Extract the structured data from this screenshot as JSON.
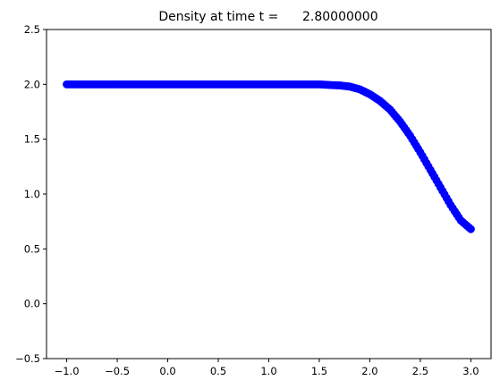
{
  "chart_data": {
    "type": "scatter",
    "title": "Density at time t =      2.80000000",
    "xlabel": "",
    "ylabel": "",
    "xlim": [
      -1.2,
      3.2
    ],
    "ylim": [
      -0.5,
      2.5
    ],
    "x_ticks": [
      -1.0,
      -0.5,
      0.0,
      0.5,
      1.0,
      1.5,
      2.0,
      2.5,
      3.0
    ],
    "x_tick_labels": [
      "−1.0",
      "−0.5",
      "0.0",
      "0.5",
      "1.0",
      "1.5",
      "2.0",
      "2.5",
      "3.0"
    ],
    "y_ticks": [
      -0.5,
      0.0,
      0.5,
      1.0,
      1.5,
      2.0,
      2.5
    ],
    "y_tick_labels": [
      "−0.5",
      "0.0",
      "0.5",
      "1.0",
      "1.5",
      "2.0",
      "2.5"
    ],
    "grid": false,
    "marker_color": "#0000ff",
    "x": [
      -1.0,
      -0.9,
      -0.8,
      -0.7,
      -0.6,
      -0.5,
      -0.4,
      -0.3,
      -0.2,
      -0.1,
      0.0,
      0.1,
      0.2,
      0.3,
      0.4,
      0.5,
      0.6,
      0.7,
      0.8,
      0.9,
      1.0,
      1.1,
      1.2,
      1.3,
      1.4,
      1.5,
      1.6,
      1.7,
      1.8,
      1.9,
      2.0,
      2.1,
      2.2,
      2.3,
      2.4,
      2.5,
      2.6,
      2.7,
      2.8,
      2.9,
      3.0
    ],
    "y": [
      2.0,
      2.0,
      2.0,
      2.0,
      2.0,
      2.0,
      2.0,
      2.0,
      2.0,
      2.0,
      2.0,
      2.0,
      2.0,
      2.0,
      2.0,
      2.0,
      2.0,
      2.0,
      2.0,
      2.0,
      2.0,
      2.0,
      2.0,
      2.0,
      2.0,
      2.0,
      1.995,
      1.99,
      1.98,
      1.955,
      1.91,
      1.85,
      1.77,
      1.66,
      1.53,
      1.38,
      1.22,
      1.06,
      0.9,
      0.76,
      0.68
    ]
  }
}
